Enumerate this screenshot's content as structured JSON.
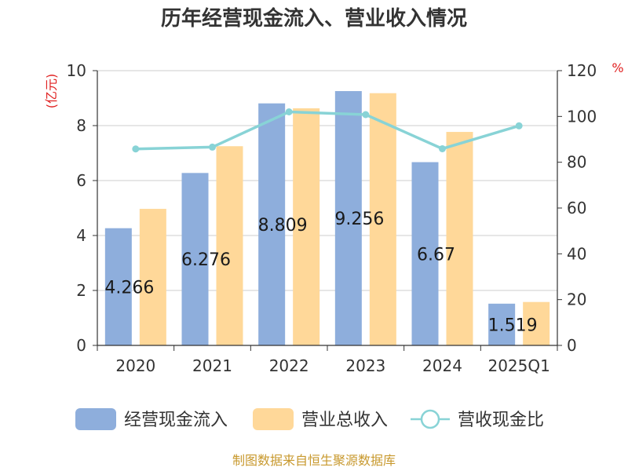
{
  "chart_data": {
    "type": "bar",
    "title": "历年经营现金流入、营业收入情况",
    "categories": [
      "2020",
      "2021",
      "2022",
      "2023",
      "2024",
      "2025Q1"
    ],
    "series": [
      {
        "name": "经营现金流入",
        "type": "bar",
        "axis": "left",
        "color": "#8eaedc",
        "values": [
          4.266,
          6.276,
          8.809,
          9.256,
          6.67,
          1.519
        ],
        "labels": [
          "4.266",
          "6.276",
          "8.809",
          "9.256",
          "6.67",
          "1.519"
        ]
      },
      {
        "name": "营业总收入",
        "type": "bar",
        "axis": "left",
        "color": "#ffd899",
        "values": [
          4.97,
          7.25,
          8.63,
          9.18,
          7.77,
          1.58
        ]
      },
      {
        "name": "营收现金比",
        "type": "line",
        "axis": "right",
        "color": "#88d3d6",
        "values": [
          85.8,
          86.6,
          102,
          100.8,
          85.9,
          95.9
        ]
      }
    ],
    "left_axis": {
      "unit": "(亿元)",
      "range": [
        0,
        10
      ],
      "ticks": [
        "0",
        "2",
        "4",
        "6",
        "8",
        "10"
      ]
    },
    "right_axis": {
      "unit": "%",
      "range": [
        0,
        120
      ],
      "ticks": [
        "0",
        "20",
        "40",
        "60",
        "80",
        "100",
        "120"
      ]
    },
    "grid": true,
    "legend_position": "bottom"
  },
  "source": "制图数据来自恒生聚源数据库"
}
